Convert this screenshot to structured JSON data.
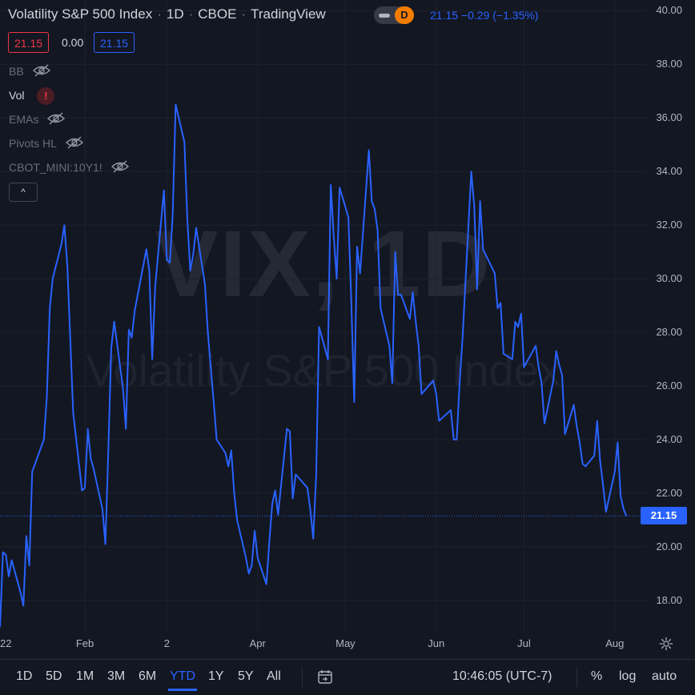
{
  "header": {
    "symbol_name": "Volatility S&P 500 Index",
    "interval": "1D",
    "exchange": "CBOE",
    "source": "TradingView",
    "badge": "D",
    "last_price": "21.15",
    "change": "−0.29",
    "change_pct": "(−1.35%)",
    "sell_price": "21.15",
    "spread": "0.00",
    "buy_price": "21.15"
  },
  "indicators": {
    "items": [
      {
        "label": "BB",
        "state": "hidden",
        "icon": "eye-off-icon"
      },
      {
        "label": "Vol",
        "state": "error",
        "icon": "alert-icon",
        "icon_glyph": "!"
      },
      {
        "label": "EMAs",
        "state": "hidden",
        "icon": "eye-off-icon"
      },
      {
        "label": "Pivots HL",
        "state": "hidden",
        "icon": "eye-off-icon"
      },
      {
        "label": "CBOT_MINI:10Y1!",
        "state": "hidden",
        "icon": "eye-off-icon"
      }
    ],
    "collapse_icon": "chevron-up-icon",
    "collapse_glyph": "^"
  },
  "watermark": {
    "line1": "VIX, 1D",
    "line2": "Volatility S&P 500 Index"
  },
  "price_axis": {
    "ticks": [
      "40.00",
      "38.00",
      "36.00",
      "34.00",
      "32.00",
      "30.00",
      "28.00",
      "26.00",
      "24.00",
      "22.00",
      "20.00",
      "18.00"
    ],
    "current_label": "21.15"
  },
  "time_axis": {
    "ticks": [
      "22",
      "Feb",
      "2",
      "Apr",
      "May",
      "Jun",
      "Jul",
      "Aug"
    ],
    "settings_icon": "gear-icon"
  },
  "bottom_bar": {
    "ranges": [
      "1D",
      "5D",
      "1M",
      "3M",
      "6M",
      "YTD",
      "1Y",
      "5Y",
      "All"
    ],
    "active_range": "YTD",
    "date_range_icon": "calendar-goto-icon",
    "clock": "10:46:05 (UTC-7)",
    "percent": "%",
    "log": "log",
    "auto": "auto"
  },
  "colors": {
    "background": "#131722",
    "line": "#2962ff",
    "sell": "#f23645",
    "alert": "#f23645",
    "badge": "#f57c00"
  },
  "chart_data": {
    "type": "line",
    "title": "Volatility S&P 500 Index",
    "xlabel": "",
    "ylabel": "",
    "ylim": [
      16.8,
      40.4
    ],
    "x_range": [
      "2022-01-03",
      "2022-08-12"
    ],
    "grid": true,
    "series": [
      {
        "name": "VIX",
        "points": [
          [
            "2022-01-03",
            17.0
          ],
          [
            "2022-01-04",
            19.8
          ],
          [
            "2022-01-05",
            19.7
          ],
          [
            "2022-01-06",
            18.9
          ],
          [
            "2022-01-07",
            19.5
          ],
          [
            "2022-01-10",
            18.3
          ],
          [
            "2022-01-11",
            17.8
          ],
          [
            "2022-01-12",
            20.4
          ],
          [
            "2022-01-13",
            19.3
          ],
          [
            "2022-01-14",
            22.8
          ],
          [
            "2022-01-18",
            24.0
          ],
          [
            "2022-01-19",
            25.6
          ],
          [
            "2022-01-20",
            28.9
          ],
          [
            "2022-01-21",
            30.0
          ],
          [
            "2022-01-24",
            31.3
          ],
          [
            "2022-01-25",
            32.0
          ],
          [
            "2022-01-26",
            30.5
          ],
          [
            "2022-01-27",
            27.8
          ],
          [
            "2022-01-28",
            25.0
          ],
          [
            "2022-01-31",
            22.1
          ],
          [
            "2022-02-01",
            22.2
          ],
          [
            "2022-02-02",
            24.4
          ],
          [
            "2022-02-03",
            23.3
          ],
          [
            "2022-02-04",
            22.9
          ],
          [
            "2022-02-07",
            21.4
          ],
          [
            "2022-02-08",
            20.1
          ],
          [
            "2022-02-09",
            23.6
          ],
          [
            "2022-02-10",
            27.4
          ],
          [
            "2022-02-11",
            28.4
          ],
          [
            "2022-02-14",
            25.9
          ],
          [
            "2022-02-15",
            24.4
          ],
          [
            "2022-02-16",
            28.1
          ],
          [
            "2022-02-17",
            27.8
          ],
          [
            "2022-02-18",
            28.8
          ],
          [
            "2022-02-22",
            31.1
          ],
          [
            "2022-02-23",
            30.3
          ],
          [
            "2022-02-24",
            27.0
          ],
          [
            "2022-02-25",
            29.7
          ],
          [
            "2022-02-28",
            33.3
          ],
          [
            "2022-03-01",
            30.7
          ],
          [
            "2022-03-02",
            30.6
          ],
          [
            "2022-03-03",
            32.4
          ],
          [
            "2022-03-04",
            36.5
          ],
          [
            "2022-03-07",
            35.1
          ],
          [
            "2022-03-08",
            32.2
          ],
          [
            "2022-03-09",
            30.3
          ],
          [
            "2022-03-10",
            30.9
          ],
          [
            "2022-03-11",
            31.9
          ],
          [
            "2022-03-14",
            29.8
          ],
          [
            "2022-03-15",
            28.0
          ],
          [
            "2022-03-16",
            26.7
          ],
          [
            "2022-03-17",
            25.4
          ],
          [
            "2022-03-18",
            24.0
          ],
          [
            "2022-03-21",
            23.5
          ],
          [
            "2022-03-22",
            23.0
          ],
          [
            "2022-03-23",
            23.6
          ],
          [
            "2022-03-24",
            22.0
          ],
          [
            "2022-03-25",
            21.0
          ],
          [
            "2022-03-28",
            19.6
          ],
          [
            "2022-03-29",
            19.0
          ],
          [
            "2022-03-30",
            19.3
          ],
          [
            "2022-03-31",
            20.6
          ],
          [
            "2022-04-01",
            19.6
          ],
          [
            "2022-04-04",
            18.6
          ],
          [
            "2022-04-05",
            20.2
          ],
          [
            "2022-04-06",
            21.6
          ],
          [
            "2022-04-07",
            22.1
          ],
          [
            "2022-04-08",
            21.2
          ],
          [
            "2022-04-11",
            24.4
          ],
          [
            "2022-04-12",
            24.3
          ],
          [
            "2022-04-13",
            21.8
          ],
          [
            "2022-04-14",
            22.7
          ],
          [
            "2022-04-18",
            22.2
          ],
          [
            "2022-04-19",
            21.4
          ],
          [
            "2022-04-20",
            20.3
          ],
          [
            "2022-04-21",
            22.7
          ],
          [
            "2022-04-22",
            28.2
          ],
          [
            "2022-04-25",
            27.0
          ],
          [
            "2022-04-26",
            33.5
          ],
          [
            "2022-04-27",
            31.6
          ],
          [
            "2022-04-28",
            30.0
          ],
          [
            "2022-04-29",
            33.4
          ],
          [
            "2022-05-02",
            32.3
          ],
          [
            "2022-05-03",
            29.2
          ],
          [
            "2022-05-04",
            25.4
          ],
          [
            "2022-05-05",
            31.2
          ],
          [
            "2022-05-06",
            30.2
          ],
          [
            "2022-05-09",
            34.8
          ],
          [
            "2022-05-10",
            32.9
          ],
          [
            "2022-05-11",
            32.6
          ],
          [
            "2022-05-12",
            31.8
          ],
          [
            "2022-05-13",
            28.9
          ],
          [
            "2022-05-16",
            27.5
          ],
          [
            "2022-05-17",
            26.1
          ],
          [
            "2022-05-18",
            31.0
          ],
          [
            "2022-05-19",
            29.4
          ],
          [
            "2022-05-20",
            29.4
          ],
          [
            "2022-05-23",
            28.5
          ],
          [
            "2022-05-24",
            29.5
          ],
          [
            "2022-05-25",
            28.4
          ],
          [
            "2022-05-26",
            27.5
          ],
          [
            "2022-05-27",
            25.7
          ],
          [
            "2022-05-31",
            26.2
          ],
          [
            "2022-06-01",
            25.7
          ],
          [
            "2022-06-02",
            24.7
          ],
          [
            "2022-06-03",
            24.8
          ],
          [
            "2022-06-06",
            25.1
          ],
          [
            "2022-06-07",
            24.0
          ],
          [
            "2022-06-08",
            24.0
          ],
          [
            "2022-06-09",
            26.1
          ],
          [
            "2022-06-10",
            27.8
          ],
          [
            "2022-06-13",
            34.0
          ],
          [
            "2022-06-14",
            32.7
          ],
          [
            "2022-06-15",
            29.6
          ],
          [
            "2022-06-16",
            32.9
          ],
          [
            "2022-06-17",
            31.1
          ],
          [
            "2022-06-21",
            30.2
          ],
          [
            "2022-06-22",
            28.9
          ],
          [
            "2022-06-23",
            29.1
          ],
          [
            "2022-06-24",
            27.2
          ],
          [
            "2022-06-27",
            27.0
          ],
          [
            "2022-06-28",
            28.4
          ],
          [
            "2022-06-29",
            28.2
          ],
          [
            "2022-06-30",
            28.7
          ],
          [
            "2022-07-01",
            26.7
          ],
          [
            "2022-07-05",
            27.5
          ],
          [
            "2022-07-06",
            26.7
          ],
          [
            "2022-07-07",
            26.1
          ],
          [
            "2022-07-08",
            24.6
          ],
          [
            "2022-07-11",
            26.2
          ],
          [
            "2022-07-12",
            27.3
          ],
          [
            "2022-07-13",
            26.8
          ],
          [
            "2022-07-14",
            26.4
          ],
          [
            "2022-07-15",
            24.2
          ],
          [
            "2022-07-18",
            25.3
          ],
          [
            "2022-07-19",
            24.5
          ],
          [
            "2022-07-20",
            23.9
          ],
          [
            "2022-07-21",
            23.1
          ],
          [
            "2022-07-22",
            23.0
          ],
          [
            "2022-07-25",
            23.4
          ],
          [
            "2022-07-26",
            24.7
          ],
          [
            "2022-07-27",
            23.2
          ],
          [
            "2022-07-28",
            22.3
          ],
          [
            "2022-07-29",
            21.3
          ],
          [
            "2022-08-01",
            22.8
          ],
          [
            "2022-08-02",
            23.9
          ],
          [
            "2022-08-03",
            21.9
          ],
          [
            "2022-08-04",
            21.4
          ],
          [
            "2022-08-05",
            21.15
          ]
        ]
      }
    ]
  }
}
